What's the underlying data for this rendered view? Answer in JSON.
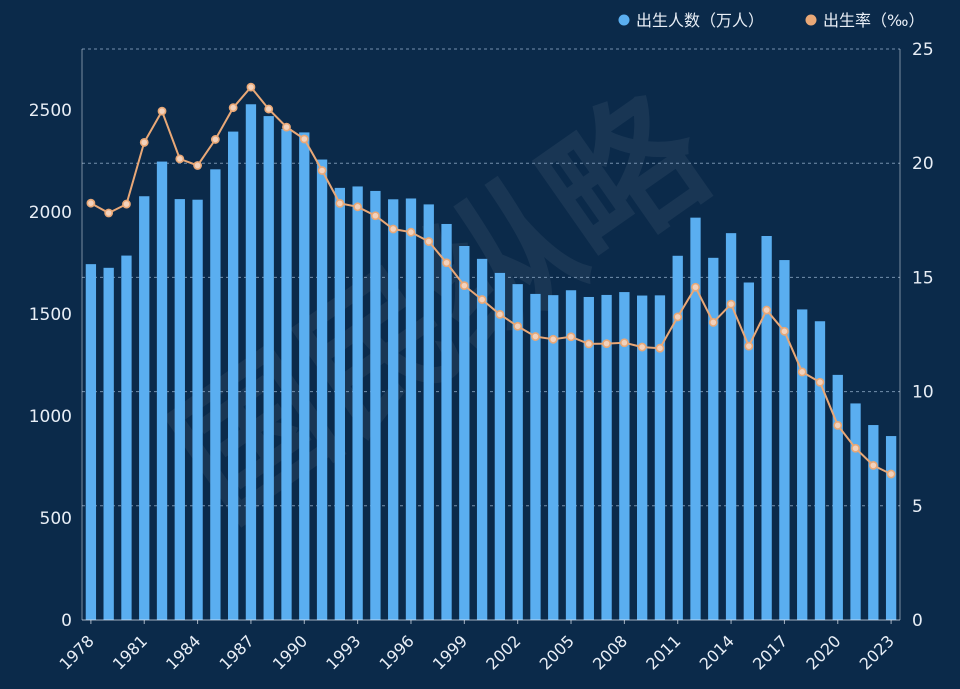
{
  "colors": {
    "background": "#0b2a4a",
    "bar": "#5aaef0",
    "line": "#e9a877",
    "marker_fill": "#f2d2bd",
    "grid": "#7f9bb8",
    "text": "#e8eef6",
    "watermark": "#ffffff"
  },
  "watermark": "国民纵略",
  "chart_data": {
    "type": "bar",
    "legend_position": "top-right",
    "grid": true,
    "x": [
      1978,
      1979,
      1980,
      1981,
      1982,
      1983,
      1984,
      1985,
      1986,
      1987,
      1988,
      1989,
      1990,
      1991,
      1992,
      1993,
      1994,
      1995,
      1996,
      1997,
      1998,
      1999,
      2000,
      2001,
      2002,
      2003,
      2004,
      2005,
      2006,
      2007,
      2008,
      2009,
      2010,
      2011,
      2012,
      2013,
      2014,
      2015,
      2016,
      2017,
      2018,
      2019,
      2020,
      2021,
      2022,
      2023
    ],
    "x_tick_labels": [
      "1978",
      "1981",
      "1984",
      "1987",
      "1990",
      "1993",
      "1996",
      "1999",
      "2002",
      "2005",
      "2008",
      "2011",
      "2014",
      "2017",
      "2020",
      "2023"
    ],
    "y_left": {
      "range": [
        0,
        2800
      ],
      "ticks": [
        0,
        500,
        1000,
        1500,
        2000,
        2500
      ]
    },
    "y_right": {
      "range": [
        0,
        25
      ],
      "ticks": [
        0,
        5,
        10,
        15,
        20,
        25
      ]
    },
    "series": [
      {
        "name": "出生人数（万人）",
        "type": "bar",
        "axis": "left",
        "values": [
          1745,
          1727,
          1787,
          2078,
          2248,
          2064,
          2061,
          2210,
          2395,
          2529,
          2471,
          2408,
          2391,
          2258,
          2119,
          2126,
          2104,
          2063,
          2067,
          2038,
          1942,
          1834,
          1771,
          1702,
          1647,
          1599,
          1593,
          1617,
          1584,
          1594,
          1608,
          1591,
          1592,
          1786,
          1973,
          1776,
          1897,
          1655,
          1883,
          1765,
          1523,
          1465,
          1202,
          1062,
          956,
          902
        ]
      },
      {
        "name": "出生率（‰）",
        "type": "line",
        "axis": "right",
        "values": [
          18.25,
          17.82,
          18.21,
          20.91,
          22.28,
          20.19,
          19.9,
          21.04,
          22.43,
          23.33,
          22.37,
          21.58,
          21.06,
          19.68,
          18.24,
          18.09,
          17.7,
          17.12,
          16.98,
          16.57,
          15.64,
          14.64,
          14.03,
          13.38,
          12.86,
          12.41,
          12.29,
          12.4,
          12.09,
          12.1,
          12.14,
          11.95,
          11.9,
          13.27,
          14.57,
          13.03,
          13.83,
          11.99,
          13.57,
          12.64,
          10.86,
          10.41,
          8.52,
          7.52,
          6.77,
          6.39
        ]
      }
    ]
  }
}
